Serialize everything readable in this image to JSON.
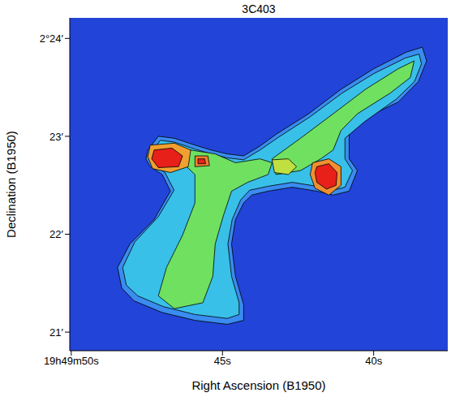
{
  "chart_data": {
    "type": "contour",
    "title": "3C403",
    "x_label": "Right Ascension (B1950)",
    "y_label": "Declination (B1950)",
    "xlim": [
      50.05,
      37.55
    ],
    "ylim": [
      20.81,
      24.21
    ],
    "xticks": [
      {
        "value": 50,
        "label": "19h49m50s"
      },
      {
        "value": 45,
        "label": "45s"
      },
      {
        "value": 40,
        "label": "40s"
      }
    ],
    "yticks": [
      {
        "value": 21,
        "label": "21′"
      },
      {
        "value": 22,
        "label": "22′"
      },
      {
        "value": 23,
        "label": "23′"
      },
      {
        "value": 24,
        "label": "2°24′"
      }
    ],
    "contours": [
      {
        "color": "#3a8cf0",
        "values": [
          [
            47.47,
            22.86
          ],
          [
            47.12,
            23.0
          ],
          [
            46.59,
            22.98
          ],
          [
            45.91,
            22.91
          ],
          [
            45.38,
            22.86
          ],
          [
            44.84,
            22.82
          ],
          [
            44.3,
            22.8
          ],
          [
            43.76,
            22.9
          ],
          [
            43.23,
            23.02
          ],
          [
            42.15,
            23.23
          ],
          [
            41.08,
            23.48
          ],
          [
            40.0,
            23.69
          ],
          [
            38.92,
            23.86
          ],
          [
            38.39,
            23.91
          ],
          [
            38.25,
            23.77
          ],
          [
            38.52,
            23.56
          ],
          [
            39.19,
            23.35
          ],
          [
            40.27,
            23.19
          ],
          [
            40.81,
            23.02
          ],
          [
            40.81,
            22.77
          ],
          [
            40.54,
            22.65
          ],
          [
            40.81,
            22.44
          ],
          [
            41.34,
            22.4
          ],
          [
            41.88,
            22.44
          ],
          [
            42.69,
            22.48
          ],
          [
            43.49,
            22.44
          ],
          [
            44.03,
            22.4
          ],
          [
            44.3,
            22.32
          ],
          [
            44.57,
            22.15
          ],
          [
            44.7,
            21.9
          ],
          [
            44.57,
            21.57
          ],
          [
            44.3,
            21.28
          ],
          [
            44.3,
            21.12
          ],
          [
            44.84,
            21.08
          ],
          [
            45.91,
            21.12
          ],
          [
            46.99,
            21.2
          ],
          [
            47.93,
            21.32
          ],
          [
            48.33,
            21.45
          ],
          [
            48.47,
            21.66
          ],
          [
            48.06,
            21.9
          ],
          [
            47.26,
            22.15
          ],
          [
            46.72,
            22.44
          ],
          [
            46.99,
            22.61
          ],
          [
            47.39,
            22.69
          ],
          [
            47.53,
            22.77
          ]
        ]
      },
      {
        "color": "#38c0e8",
        "values": [
          [
            47.35,
            22.84
          ],
          [
            47.05,
            22.96
          ],
          [
            46.59,
            22.94
          ],
          [
            45.91,
            22.87
          ],
          [
            45.38,
            22.82
          ],
          [
            44.84,
            22.78
          ],
          [
            44.3,
            22.76
          ],
          [
            43.76,
            22.86
          ],
          [
            43.15,
            22.99
          ],
          [
            42.1,
            23.2
          ],
          [
            41.05,
            23.44
          ],
          [
            40.0,
            23.64
          ],
          [
            38.95,
            23.8
          ],
          [
            38.5,
            23.84
          ],
          [
            38.42,
            23.74
          ],
          [
            38.65,
            23.56
          ],
          [
            39.25,
            23.38
          ],
          [
            40.3,
            23.15
          ],
          [
            40.95,
            22.98
          ],
          [
            40.95,
            22.77
          ],
          [
            40.7,
            22.65
          ],
          [
            40.95,
            22.48
          ],
          [
            41.34,
            22.45
          ],
          [
            41.88,
            22.49
          ],
          [
            42.69,
            22.53
          ],
          [
            43.49,
            22.49
          ],
          [
            44.1,
            22.45
          ],
          [
            44.4,
            22.35
          ],
          [
            44.68,
            22.15
          ],
          [
            44.82,
            21.9
          ],
          [
            44.7,
            21.57
          ],
          [
            44.45,
            21.3
          ],
          [
            44.45,
            21.18
          ],
          [
            44.84,
            21.14
          ],
          [
            45.91,
            21.18
          ],
          [
            46.95,
            21.26
          ],
          [
            47.8,
            21.37
          ],
          [
            48.18,
            21.48
          ],
          [
            48.3,
            21.66
          ],
          [
            47.9,
            21.92
          ],
          [
            47.12,
            22.18
          ],
          [
            46.6,
            22.45
          ],
          [
            46.9,
            22.63
          ],
          [
            47.3,
            22.71
          ]
        ]
      },
      {
        "color": "#70e060",
        "values": [
          [
            43.36,
            22.77
          ],
          [
            42.42,
            22.98
          ],
          [
            41.34,
            23.23
          ],
          [
            40.27,
            23.48
          ],
          [
            39.19,
            23.69
          ],
          [
            38.66,
            23.77
          ],
          [
            38.79,
            23.6
          ],
          [
            39.46,
            23.44
          ],
          [
            40.54,
            23.23
          ],
          [
            41.08,
            23.06
          ],
          [
            41.34,
            22.86
          ],
          [
            41.75,
            22.77
          ],
          [
            42.42,
            22.65
          ],
          [
            43.23,
            22.61
          ]
        ]
      },
      {
        "color": "#70e060",
        "values": [
          [
            46.05,
            22.86
          ],
          [
            45.24,
            22.82
          ],
          [
            44.57,
            22.73
          ],
          [
            43.76,
            22.77
          ],
          [
            43.36,
            22.73
          ],
          [
            43.49,
            22.61
          ],
          [
            44.17,
            22.53
          ],
          [
            44.7,
            22.44
          ],
          [
            44.97,
            22.19
          ],
          [
            45.24,
            21.9
          ],
          [
            45.32,
            21.57
          ],
          [
            45.65,
            21.3
          ],
          [
            46.59,
            21.24
          ],
          [
            47.12,
            21.37
          ],
          [
            46.85,
            21.66
          ],
          [
            46.32,
            21.99
          ],
          [
            45.91,
            22.32
          ],
          [
            45.91,
            22.61
          ],
          [
            46.32,
            22.73
          ]
        ]
      },
      {
        "color": "#c0e040",
        "values": [
          [
            43.36,
            22.76
          ],
          [
            42.82,
            22.77
          ],
          [
            42.55,
            22.69
          ],
          [
            42.82,
            22.61
          ],
          [
            43.28,
            22.63
          ]
        ]
      },
      {
        "color": "#f0a030",
        "values": [
          [
            47.39,
            22.91
          ],
          [
            46.59,
            22.93
          ],
          [
            46.05,
            22.86
          ],
          [
            46.13,
            22.69
          ],
          [
            46.72,
            22.63
          ],
          [
            47.31,
            22.67
          ],
          [
            47.47,
            22.79
          ]
        ]
      },
      {
        "color": "#e8201a",
        "values": [
          [
            47.26,
            22.86
          ],
          [
            46.67,
            22.88
          ],
          [
            46.32,
            22.8
          ],
          [
            46.45,
            22.69
          ],
          [
            47.12,
            22.68
          ],
          [
            47.34,
            22.77
          ]
        ]
      },
      {
        "color": "#f08030",
        "values": [
          [
            45.91,
            22.8
          ],
          [
            45.48,
            22.8
          ],
          [
            45.43,
            22.7
          ],
          [
            45.91,
            22.69
          ]
        ]
      },
      {
        "color": "#e8201a",
        "values": [
          [
            45.81,
            22.77
          ],
          [
            45.59,
            22.77
          ],
          [
            45.56,
            22.72
          ],
          [
            45.81,
            22.72
          ]
        ]
      },
      {
        "color": "#f09030",
        "values": [
          [
            42.02,
            22.73
          ],
          [
            41.48,
            22.77
          ],
          [
            41.08,
            22.69
          ],
          [
            41.08,
            22.5
          ],
          [
            41.48,
            22.4
          ],
          [
            41.94,
            22.47
          ],
          [
            42.1,
            22.61
          ]
        ]
      },
      {
        "color": "#e8201a",
        "values": [
          [
            41.88,
            22.69
          ],
          [
            41.48,
            22.72
          ],
          [
            41.21,
            22.63
          ],
          [
            41.24,
            22.5
          ],
          [
            41.56,
            22.46
          ],
          [
            41.88,
            22.53
          ],
          [
            41.94,
            22.63
          ]
        ]
      }
    ]
  }
}
